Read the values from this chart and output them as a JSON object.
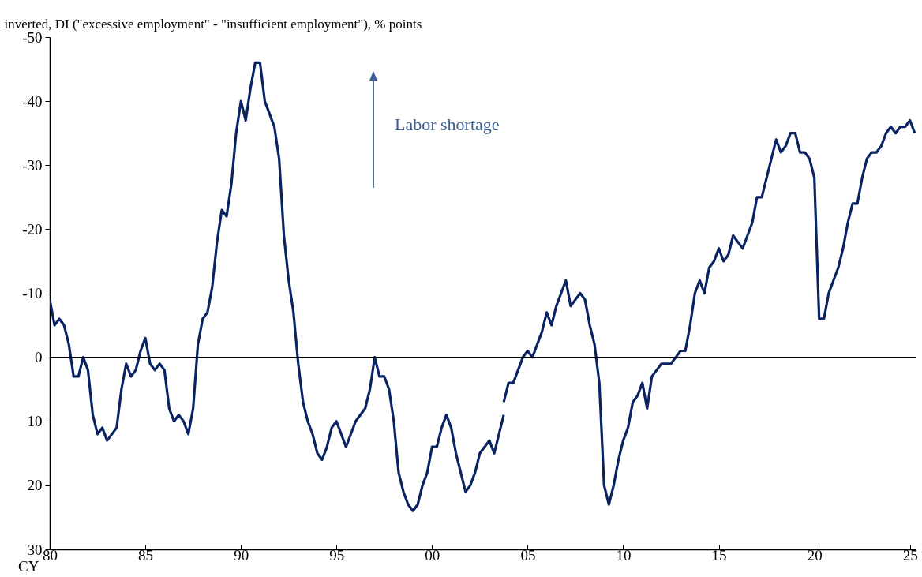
{
  "chart_data": {
    "type": "line",
    "ylabel": "inverted, DI (\"excessive employment\" - \"insufficient employment\"), % points",
    "xlabel": "CY",
    "annotations": [
      "Labor  shortage"
    ],
    "xlim": [
      1980,
      2025.3
    ],
    "xticks": [
      {
        "value": 1980,
        "label": "80"
      },
      {
        "value": 1985,
        "label": "85"
      },
      {
        "value": 1990,
        "label": "90"
      },
      {
        "value": 1995,
        "label": "95"
      },
      {
        "value": 2000,
        "label": "00"
      },
      {
        "value": 2005,
        "label": "05"
      },
      {
        "value": 2010,
        "label": "10"
      },
      {
        "value": 2015,
        "label": "15"
      },
      {
        "value": 2020,
        "label": "20"
      },
      {
        "value": 2025,
        "label": "25"
      }
    ],
    "ylim": [
      30,
      -50
    ],
    "yticks": [
      -50,
      -40,
      -30,
      -20,
      -10,
      0,
      10,
      20,
      30
    ],
    "grid": false,
    "legend": false,
    "marker": "none",
    "line_style": "solid",
    "ref_lines": [
      {
        "axis": "y",
        "value": 0,
        "color": "#000000"
      }
    ],
    "series": [
      {
        "color": "#0a2463",
        "x": [
          1980,
          1980.25,
          1980.5,
          1980.75,
          1981,
          1981.25,
          1981.5,
          1981.75,
          1982,
          1982.25,
          1982.5,
          1982.75,
          1983,
          1983.5,
          1983.75,
          1984,
          1984.25,
          1984.5,
          1984.75,
          1985,
          1985.25,
          1985.5,
          1985.75,
          1986,
          1986.25,
          1986.5,
          1986.75,
          1987,
          1987.25,
          1987.5,
          1987.75,
          1988,
          1988.25,
          1988.5,
          1988.75,
          1989,
          1989.25,
          1989.5,
          1989.75,
          1990,
          1990.25,
          1990.5,
          1990.75,
          1991,
          1991.25,
          1991.75,
          1992,
          1992.25,
          1992.5,
          1992.75,
          1993,
          1993.25,
          1993.5,
          1993.75,
          1994,
          1994.25,
          1994.5,
          1994.75,
          1995,
          1995.25,
          1995.5,
          1995.75,
          1996,
          1996.5,
          1996.75,
          1997,
          1997.25,
          1997.5,
          1997.75,
          1998,
          1998.25,
          1998.5,
          1998.75,
          1999,
          1999.25,
          1999.5,
          1999.75,
          2000,
          2000.25,
          2000.5,
          2000.75,
          2001,
          2001.25,
          2001.5,
          2001.75,
          2002,
          2002.25,
          2002.5,
          2002.75,
          2003,
          2003.25,
          2003.75
        ],
        "values": [
          -9,
          -5,
          -6,
          -5,
          -2,
          3,
          3,
          0,
          2,
          9,
          12,
          11,
          13,
          11,
          5,
          1,
          3,
          2,
          -1,
          -3,
          1,
          2,
          1,
          2,
          8,
          10,
          9,
          10,
          12,
          8,
          -2,
          -6,
          -7,
          -11,
          -18,
          -23,
          -22,
          -27,
          -35,
          -40,
          -37,
          -42,
          -46,
          -46,
          -40,
          -36,
          -31,
          -19,
          -12,
          -7,
          1,
          7,
          10,
          12,
          15,
          16,
          14,
          11,
          10,
          12,
          14,
          12,
          10,
          8,
          5,
          0,
          3,
          3,
          5,
          10,
          18,
          21,
          23,
          24,
          23,
          20,
          18,
          14,
          14,
          11,
          9,
          11,
          15,
          18,
          21,
          20,
          18,
          15,
          14,
          13,
          15,
          9
        ]
      },
      {
        "color": "#0a2463",
        "x": [
          2003.75,
          2004,
          2004.25,
          2004.5,
          2004.75,
          2005,
          2005.25,
          2005.5,
          2005.75,
          2006,
          2006.25,
          2006.5,
          2006.75,
          2007,
          2007.25,
          2007.5,
          2007.75,
          2008,
          2008.25,
          2008.5,
          2008.75,
          2009,
          2009.25,
          2009.5,
          2009.75,
          2010,
          2010.25,
          2010.5,
          2010.75,
          2011,
          2011.25,
          2011.5,
          2011.75,
          2012,
          2012.5,
          2012.75,
          2013,
          2013.25,
          2013.5,
          2013.75,
          2014,
          2014.25,
          2014.5,
          2014.75,
          2015,
          2015.25,
          2015.5,
          2015.75,
          2016,
          2016.25,
          2016.5,
          2016.75,
          2017,
          2017.25,
          2018,
          2018.25,
          2018.5,
          2018.75,
          2019,
          2019.25,
          2019.5,
          2019.75,
          2020,
          2020.25,
          2020.5,
          2020.75,
          2021,
          2021.25,
          2021.5,
          2021.75,
          2022,
          2022.25,
          2022.5,
          2022.75,
          2023,
          2023.25,
          2023.5,
          2023.75,
          2024,
          2024.25,
          2024.5,
          2024.75,
          2025,
          2025.25
        ],
        "values": [
          7,
          4,
          4,
          2,
          0,
          -1,
          0,
          -2,
          -4,
          -7,
          -5,
          -8,
          -10,
          -12,
          -8,
          -9,
          -10,
          -9,
          -5,
          -2,
          4,
          20,
          23,
          20,
          16,
          13,
          11,
          7,
          6,
          4,
          8,
          3,
          2,
          1,
          1,
          0,
          -1,
          -1,
          -5,
          -10,
          -12,
          -10,
          -14,
          -15,
          -17,
          -15,
          -16,
          -19,
          -18,
          -17,
          -19,
          -21,
          -25,
          -25,
          -34,
          -32,
          -33,
          -35,
          -35,
          -32,
          -32,
          -31,
          -28,
          -6,
          -6,
          -10,
          -12,
          -14,
          -17,
          -21,
          -24,
          -24,
          -28,
          -31,
          -32,
          -32,
          -33,
          -35,
          -36,
          -35,
          -36,
          -36,
          -37,
          -35
        ]
      }
    ]
  }
}
